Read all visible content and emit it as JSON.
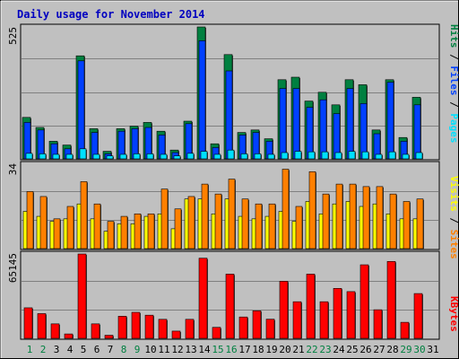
{
  "title": "Daily usage for November 2014",
  "colors": {
    "background": "#c0c0c0",
    "plot_bg": "#c0c0c0",
    "border": "#000000",
    "grid": "#808080",
    "title": "#0000c0",
    "hits": "#008040",
    "files": "#0040ff",
    "pages": "#00e0ff",
    "visits": "#ffff00",
    "sites": "#ff8000",
    "kbytes": "#ff0000",
    "weekend_label": "#008040",
    "weekday_label": "#000000"
  },
  "chart_data": [
    {
      "type": "bar",
      "panel": "hits-files-pages",
      "ymax_label": "525",
      "ylim": [
        0,
        525
      ],
      "legend": [
        "Pages",
        "/",
        "Files",
        "/",
        "Hits"
      ],
      "categories": [
        "1",
        "2",
        "3",
        "4",
        "5",
        "6",
        "7",
        "8",
        "9",
        "10",
        "11",
        "12",
        "13",
        "14",
        "15",
        "16",
        "17",
        "18",
        "19",
        "20",
        "21",
        "22",
        "23",
        "24",
        "25",
        "26",
        "27",
        "28",
        "29",
        "30",
        "31"
      ],
      "series": [
        {
          "name": "Hits",
          "values": [
            165,
            125,
            70,
            55,
            410,
            120,
            30,
            120,
            130,
            145,
            110,
            35,
            150,
            525,
            60,
            415,
            105,
            115,
            80,
            315,
            325,
            230,
            265,
            215,
            315,
            295,
            115,
            315,
            85,
            245,
            0
          ]
        },
        {
          "name": "Files",
          "values": [
            145,
            115,
            60,
            40,
            390,
            105,
            20,
            110,
            120,
            125,
            95,
            25,
            140,
            470,
            45,
            350,
            95,
            105,
            70,
            280,
            280,
            205,
            235,
            180,
            280,
            220,
            100,
            305,
            70,
            215,
            0
          ]
        },
        {
          "name": "Pages",
          "values": [
            22,
            20,
            18,
            18,
            40,
            18,
            12,
            18,
            20,
            20,
            18,
            12,
            22,
            30,
            18,
            35,
            20,
            20,
            18,
            25,
            30,
            28,
            28,
            25,
            30,
            28,
            18,
            28,
            18,
            25,
            0
          ]
        }
      ]
    },
    {
      "type": "bar",
      "panel": "visits-sites",
      "ymax_label": "34",
      "ylim": [
        0,
        34
      ],
      "legend": [
        "Sites",
        "/",
        "Visits"
      ],
      "categories": [
        "1",
        "2",
        "3",
        "4",
        "5",
        "6",
        "7",
        "8",
        "9",
        "10",
        "11",
        "12",
        "13",
        "14",
        "15",
        "16",
        "17",
        "18",
        "19",
        "20",
        "21",
        "22",
        "23",
        "24",
        "25",
        "26",
        "27",
        "28",
        "29",
        "30",
        "31"
      ],
      "series": [
        {
          "name": "Visits",
          "values": [
            15,
            13,
            11,
            12,
            18,
            12,
            7,
            10,
            10,
            13,
            14,
            8,
            20,
            20,
            14,
            20,
            13,
            12,
            13,
            15,
            11,
            19,
            14,
            18,
            19,
            17,
            18,
            14,
            12,
            12,
            0
          ]
        },
        {
          "name": "Sites",
          "values": [
            23,
            21,
            12,
            17,
            27,
            18,
            11,
            13,
            14,
            14,
            24,
            16,
            21,
            26,
            22,
            28,
            20,
            18,
            18,
            32,
            17,
            31,
            22,
            26,
            26,
            25,
            25,
            22,
            19,
            20,
            0
          ]
        }
      ]
    },
    {
      "type": "bar",
      "panel": "kbytes",
      "ymax_label": "65145",
      "ylim": [
        0,
        65145
      ],
      "legend": [
        "KBytes"
      ],
      "categories": [
        "1",
        "2",
        "3",
        "4",
        "5",
        "6",
        "7",
        "8",
        "9",
        "10",
        "11",
        "12",
        "13",
        "14",
        "15",
        "16",
        "17",
        "18",
        "19",
        "20",
        "21",
        "22",
        "23",
        "24",
        "25",
        "26",
        "27",
        "28",
        "29",
        "30",
        "31"
      ],
      "series": [
        {
          "name": "KBytes",
          "values": [
            23600,
            19100,
            11200,
            3400,
            65145,
            11200,
            2400,
            17100,
            20100,
            17900,
            14700,
            5600,
            14700,
            61900,
            8500,
            49600,
            16500,
            21300,
            14800,
            44100,
            28300,
            49600,
            28300,
            38600,
            36100,
            56800,
            22100,
            59400,
            12400,
            34600,
            0
          ]
        }
      ]
    }
  ]
}
